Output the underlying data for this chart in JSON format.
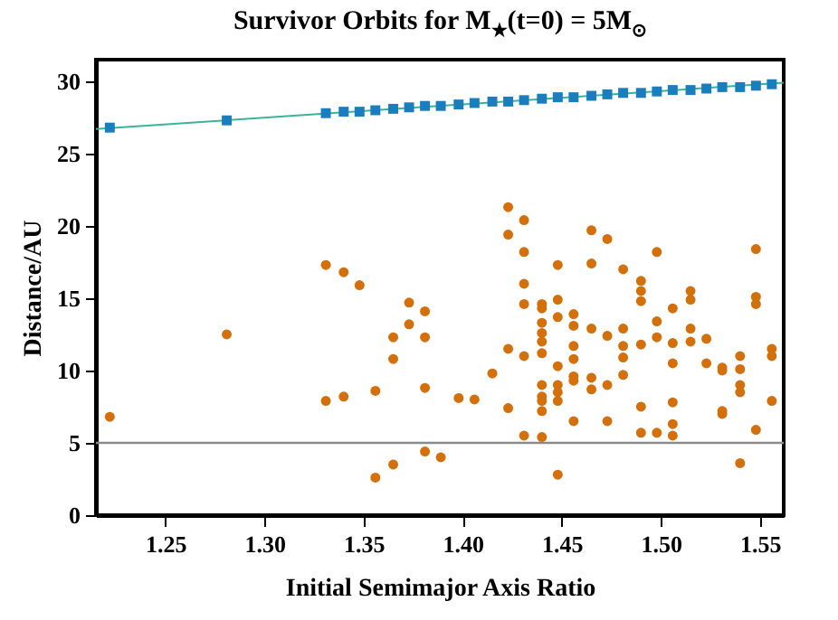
{
  "chart_data": {
    "type": "scatter",
    "title": "Survivor Orbits for M$_{★}$(t=0) = 5M$_{⊙}$",
    "xlabel": "Initial Semimajor Axis Ratio",
    "ylabel": "Distance/AU",
    "xlim": [
      1.215,
      1.562
    ],
    "ylim": [
      0,
      31.5
    ],
    "xticks": [
      1.25,
      {
        "value": 1.3,
        "label": "1.30"
      },
      1.35,
      {
        "value": 1.4,
        "label": "1.40"
      },
      1.45,
      {
        "value": 1.5,
        "label": "1.50"
      },
      1.55
    ],
    "yticks": [
      0,
      5,
      10,
      15,
      20,
      25,
      30
    ],
    "grid": false,
    "ref_lines": [
      {
        "axis": "y",
        "value": 5,
        "color": "#8a8a8a"
      }
    ],
    "series": [
      {
        "type": "line",
        "color": "#3bb39b",
        "marker": "none",
        "x": [
          1.215,
          1.562
        ],
        "values": [
          26.7,
          29.9
        ]
      },
      {
        "color": "#1a7dbd",
        "marker": "square",
        "x": [
          1.222,
          1.281,
          1.331,
          1.34,
          1.348,
          1.356,
          1.365,
          1.373,
          1.381,
          1.389,
          1.398,
          1.406,
          1.415,
          1.423,
          1.431,
          1.44,
          1.448,
          1.456,
          1.465,
          1.473,
          1.481,
          1.49,
          1.498,
          1.506,
          1.515,
          1.523,
          1.531,
          1.54,
          1.548,
          1.556
        ],
        "values": [
          26.8,
          27.3,
          27.8,
          27.9,
          27.9,
          28.0,
          28.1,
          28.2,
          28.3,
          28.3,
          28.4,
          28.5,
          28.6,
          28.6,
          28.7,
          28.8,
          28.9,
          28.9,
          29.0,
          29.1,
          29.2,
          29.2,
          29.3,
          29.4,
          29.4,
          29.5,
          29.6,
          29.6,
          29.7,
          29.8
        ]
      },
      {
        "color": "#d4700c",
        "marker": "circle",
        "x": [
          1.222,
          1.281,
          1.331,
          1.34,
          1.348,
          1.331,
          1.34,
          1.356,
          1.356,
          1.365,
          1.365,
          1.365,
          1.373,
          1.373,
          1.381,
          1.381,
          1.381,
          1.381,
          1.389,
          1.398,
          1.406,
          1.415,
          1.423,
          1.423,
          1.423,
          1.423,
          1.431,
          1.431,
          1.431,
          1.431,
          1.431,
          1.431,
          1.44,
          1.44,
          1.44,
          1.44,
          1.44,
          1.44,
          1.44,
          1.44,
          1.44,
          1.44,
          1.44,
          1.448,
          1.448,
          1.448,
          1.448,
          1.448,
          1.448,
          1.448,
          1.448,
          1.456,
          1.456,
          1.456,
          1.456,
          1.456,
          1.456,
          1.456,
          1.465,
          1.465,
          1.465,
          1.465,
          1.465,
          1.473,
          1.473,
          1.473,
          1.473,
          1.481,
          1.481,
          1.481,
          1.481,
          1.481,
          1.49,
          1.49,
          1.49,
          1.49,
          1.49,
          1.49,
          1.498,
          1.498,
          1.498,
          1.498,
          1.506,
          1.506,
          1.506,
          1.506,
          1.506,
          1.506,
          1.515,
          1.515,
          1.515,
          1.515,
          1.523,
          1.523,
          1.531,
          1.531,
          1.531,
          1.531,
          1.54,
          1.54,
          1.54,
          1.54,
          1.54,
          1.548,
          1.548,
          1.548,
          1.548,
          1.556,
          1.556,
          1.556
        ],
        "values": [
          6.8,
          12.5,
          17.3,
          16.8,
          15.9,
          7.9,
          8.2,
          8.6,
          2.6,
          3.5,
          10.8,
          12.3,
          14.7,
          13.2,
          14.1,
          12.3,
          8.8,
          4.4,
          4.0,
          8.1,
          8.0,
          9.8,
          21.3,
          19.4,
          11.5,
          7.4,
          20.4,
          18.2,
          16.0,
          14.6,
          11.0,
          5.5,
          14.6,
          14.3,
          13.3,
          12.6,
          12.0,
          11.2,
          9.0,
          8.2,
          7.9,
          7.2,
          5.4,
          17.3,
          14.9,
          13.7,
          10.3,
          9.0,
          8.5,
          7.9,
          2.8,
          13.9,
          13.1,
          11.7,
          10.8,
          9.6,
          9.3,
          6.5,
          19.7,
          17.4,
          12.9,
          9.5,
          8.7,
          19.1,
          12.4,
          9.0,
          6.5,
          17.0,
          12.9,
          11.7,
          10.9,
          9.7,
          16.2,
          15.5,
          14.8,
          11.8,
          7.5,
          5.7,
          18.2,
          13.4,
          12.3,
          5.7,
          14.3,
          11.9,
          10.5,
          7.8,
          6.3,
          5.5,
          15.5,
          14.9,
          12.9,
          12.0,
          12.2,
          10.5,
          7.2,
          7.0,
          10.2,
          10.0,
          11.0,
          10.1,
          9.0,
          8.5,
          3.6,
          18.4,
          15.1,
          14.6,
          5.9,
          11.5,
          11.0,
          7.9
        ]
      }
    ]
  }
}
